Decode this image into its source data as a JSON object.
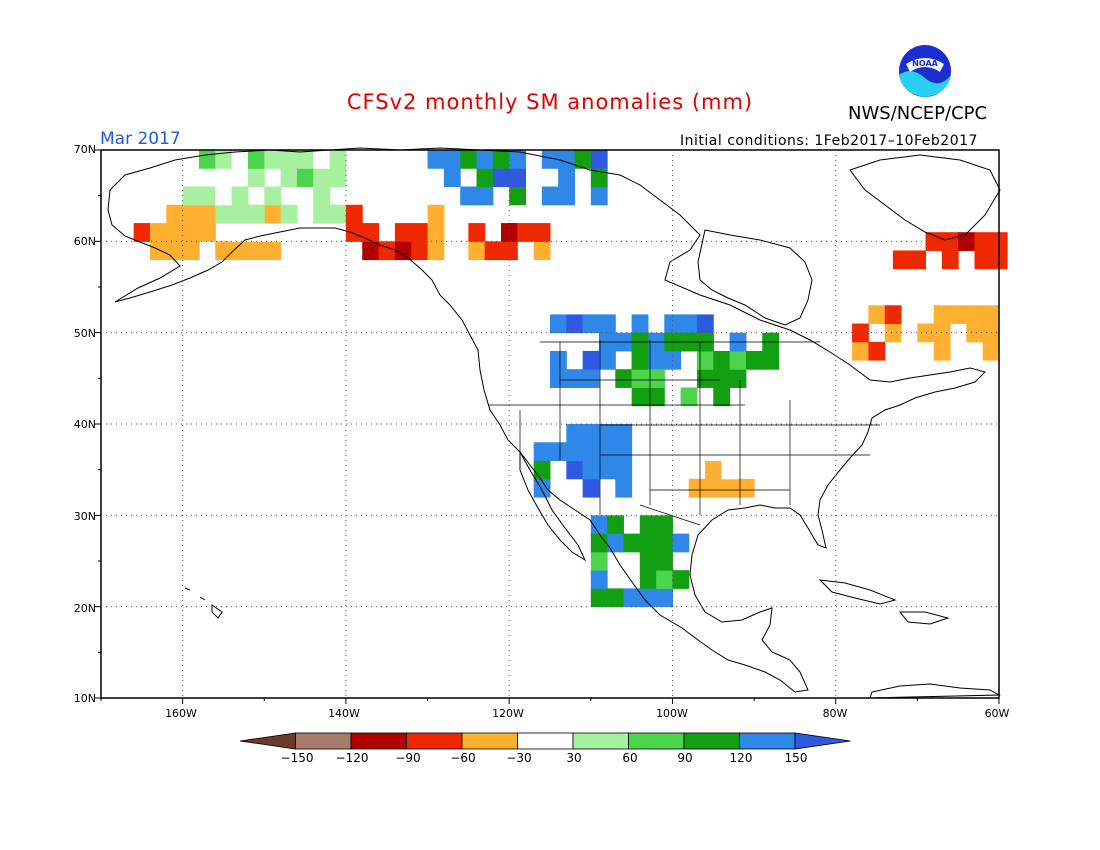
{
  "title": "CFSv2 monthly SM anomalies (mm)",
  "agency": "NWS/NCEP/CPC",
  "logo_text": "NOAA",
  "valid_month": "Mar 2017",
  "initial_conditions": "Initial conditions: 1Feb2017–10Feb2017",
  "map": {
    "lon_range": [
      -170,
      -60
    ],
    "lat_range": [
      10,
      70
    ],
    "lat_labels": [
      "70N",
      "60N",
      "50N",
      "40N",
      "30N",
      "20N",
      "10N"
    ],
    "lon_labels": [
      "160W",
      "140W",
      "120W",
      "100W",
      "80W",
      "60W"
    ],
    "grid": true
  },
  "colorbar": {
    "labels": [
      "−150",
      "−120",
      "−90",
      "−60",
      "−30",
      "30",
      "60",
      "90",
      "120",
      "150"
    ],
    "colors": [
      "#6b3a2a",
      "#a67b6b",
      "#b00000",
      "#f02800",
      "#ffb030",
      "#ffffff",
      "#a6f0a0",
      "#4cd54c",
      "#12a012",
      "#2f87e8",
      "#2f5ae0"
    ]
  },
  "colors": {
    "title": "#e00000",
    "valid_month": "#1f5de0"
  },
  "anomaly_regions": [
    {
      "name": "alaska-west-dry",
      "class": 4,
      "lon": [
        -166,
        -148
      ],
      "lat": [
        58,
        64
      ]
    },
    {
      "name": "alaska-interior-wet",
      "class": 6,
      "lon": [
        -160,
        -140
      ],
      "lat": [
        62,
        69
      ]
    },
    {
      "name": "alaska-panhandle-dry",
      "class": 3,
      "lon": [
        -140,
        -127
      ],
      "lat": [
        58,
        63
      ]
    },
    {
      "name": "yukon-wet",
      "class": 9,
      "lon": [
        -130,
        -108
      ],
      "lat": [
        64,
        70
      ]
    },
    {
      "name": "nwt-dry",
      "class": 3,
      "lon": [
        -125,
        -115
      ],
      "lat": [
        58,
        62
      ]
    },
    {
      "name": "prairies-wet",
      "class": 9,
      "lon": [
        -115,
        -95
      ],
      "lat": [
        44,
        52
      ]
    },
    {
      "name": "northern-plains-wet",
      "class": 8,
      "lon": [
        -105,
        -88
      ],
      "lat": [
        42,
        49
      ]
    },
    {
      "name": "southwest-wet",
      "class": 9,
      "lon": [
        -117,
        -105
      ],
      "lat": [
        32,
        40
      ]
    },
    {
      "name": "mexico-wet",
      "class": 8,
      "lon": [
        -110,
        -98
      ],
      "lat": [
        20,
        30
      ]
    },
    {
      "name": "quebec-dry",
      "class": 4,
      "lon": [
        -78,
        -60
      ],
      "lat": [
        47,
        52
      ]
    },
    {
      "name": "labrador-dry",
      "class": 3,
      "lon": [
        -75,
        -60
      ],
      "lat": [
        57,
        61
      ]
    },
    {
      "name": "gulf-coast-dry",
      "class": 4,
      "lon": [
        -98,
        -90
      ],
      "lat": [
        32,
        37
      ]
    }
  ]
}
